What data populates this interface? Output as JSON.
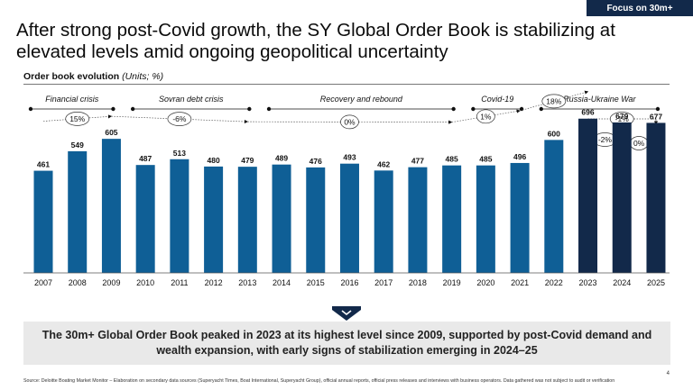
{
  "badge": "Focus on 30m+",
  "title": "After strong post-Covid growth, the SY Global Order Book is stabilizing at elevated levels amid ongoing geopolitical uncertainty",
  "subtitle": {
    "main": "Order book evolution ",
    "unit": "(Units; %)"
  },
  "chart_data": {
    "type": "bar",
    "categories": [
      "2007",
      "2008",
      "2009",
      "2010",
      "2011",
      "2012",
      "2013",
      "2014",
      "2015",
      "2016",
      "2017",
      "2018",
      "2019",
      "2020",
      "2021",
      "2022",
      "2023",
      "2024",
      "2025"
    ],
    "values": [
      461,
      549,
      605,
      487,
      513,
      480,
      479,
      489,
      476,
      493,
      462,
      477,
      485,
      485,
      496,
      600,
      696,
      679,
      677
    ],
    "ylim": [
      0,
      760
    ],
    "light_color": "#0f5f96",
    "dark_color": "#12294a",
    "periods": [
      {
        "label": "Financial crisis",
        "from": "2007",
        "to": "2009"
      },
      {
        "label": "Sovran debt crisis",
        "from": "2010",
        "to": "2013"
      },
      {
        "label": "Recovery and rebound",
        "from": "2014",
        "to": "2019"
      },
      {
        "label": "Covid-19",
        "from": "2020",
        "to": "2021"
      },
      {
        "label": "Russia-Ukraine War",
        "from": "2022",
        "to": "2025"
      }
    ],
    "growth_annotations": [
      {
        "label": "15%",
        "from": "2007",
        "to": "2009"
      },
      {
        "label": "-6%",
        "from": "2009",
        "to": "2013"
      },
      {
        "label": "0%",
        "from": "2013",
        "to": "2019"
      },
      {
        "label": "1%",
        "from": "2019",
        "to": "2021"
      },
      {
        "label": "18%",
        "from": "2021",
        "to": "2023"
      },
      {
        "label": "-1%",
        "from": "2023",
        "to": "2025"
      },
      {
        "label": "-2%",
        "from": "2023",
        "to": "2024"
      },
      {
        "label": "0%",
        "from": "2024",
        "to": "2025"
      }
    ]
  },
  "summary": "The 30m+ Global Order Book peaked in 2023 at its highest level since 2009, supported by post-Covid demand and wealth expansion, with early signs of stabilization emerging in 2024–25",
  "source": "Source: Deloitte Boating Market Monitor – Elaboration on secondary data sources (Superyacht Times, Boat International, Superyacht Group), official annual reports, official press releases and interviews with business operators. Data gathered was not subject to audit or verification",
  "page_number": "4"
}
